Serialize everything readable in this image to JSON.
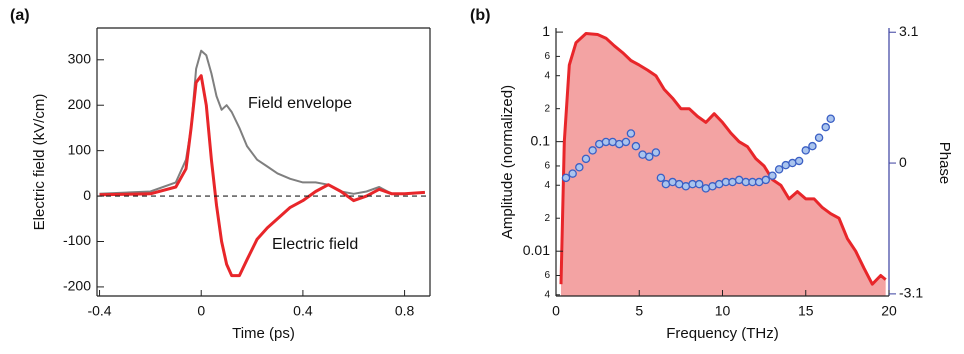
{
  "chart_data": [
    {
      "type": "line",
      "panel_label": "(a)",
      "xlabel": "Time (ps)",
      "ylabel": "Electric field  (kV/cm)",
      "xlim": [
        -0.41,
        0.9
      ],
      "ylim": [
        -220,
        370
      ],
      "xticks": [
        -0.4,
        0,
        0.4,
        0.8
      ],
      "yticks": [
        -200,
        -100,
        0,
        100,
        200,
        300
      ],
      "zero_line": true,
      "x": [
        -0.4,
        -0.2,
        -0.1,
        -0.06,
        -0.04,
        -0.02,
        0,
        0.02,
        0.04,
        0.06,
        0.08,
        0.1,
        0.12,
        0.15,
        0.18,
        0.22,
        0.26,
        0.3,
        0.35,
        0.4,
        0.45,
        0.5,
        0.55,
        0.6,
        0.65,
        0.7,
        0.75,
        0.8,
        0.88
      ],
      "series": [
        {
          "name": "Field envelope",
          "color": "#7f7f7f",
          "values": [
            5,
            10,
            30,
            80,
            150,
            280,
            320,
            310,
            270,
            220,
            190,
            200,
            185,
            150,
            110,
            80,
            65,
            50,
            38,
            30,
            30,
            25,
            10,
            5,
            10,
            20,
            5,
            5,
            8
          ]
        },
        {
          "name": "Electric field",
          "color": "#e8262a",
          "values": [
            3,
            5,
            20,
            60,
            150,
            250,
            265,
            200,
            80,
            -20,
            -100,
            -150,
            -175,
            -175,
            -140,
            -95,
            -70,
            -50,
            -25,
            -10,
            10,
            25,
            10,
            -10,
            0,
            15,
            5,
            5,
            8
          ]
        }
      ]
    },
    {
      "type": "area",
      "panel_label": "(b)",
      "xlabel": "Frequency (THz)",
      "ylabel": "Amplitude (normalized)",
      "y2label": "Phase",
      "xlim": [
        0,
        20
      ],
      "ylim": [
        0.0039,
        1.09
      ],
      "ylog": true,
      "y2lim": [
        -3.15,
        3.2
      ],
      "xticks": [
        0,
        5,
        10,
        15,
        20
      ],
      "yticks": [
        {
          "value": 0.004,
          "label": "4"
        },
        {
          "value": 0.006,
          "label": "6"
        },
        0.01,
        {
          "value": 0.02,
          "label": "2"
        },
        {
          "value": 0.04,
          "label": "4"
        },
        {
          "value": 0.06,
          "label": "6"
        },
        0.1,
        {
          "value": 0.2,
          "label": "2"
        },
        {
          "value": 0.4,
          "label": "4"
        },
        {
          "value": 0.6,
          "label": "6"
        },
        1
      ],
      "y2ticks": [
        -3.1,
        0,
        3.1
      ],
      "y2color": "#3a3fa0",
      "series": [
        {
          "color": "#e8262a",
          "fill": "#f3a3a3",
          "x": [
            0.3,
            0.5,
            0.8,
            1.2,
            1.8,
            2.5,
            3,
            3.5,
            4,
            4.5,
            5,
            5.5,
            6,
            6.5,
            7,
            7.5,
            8,
            8.5,
            9,
            9.5,
            10,
            10.5,
            11,
            11.5,
            12,
            12.5,
            13,
            13.5,
            14,
            14.5,
            15,
            15.5,
            16,
            16.5,
            17,
            17.5,
            18,
            18.5,
            19,
            19.5,
            19.8
          ],
          "values": [
            0.005,
            0.1,
            0.5,
            0.8,
            0.97,
            0.95,
            0.88,
            0.75,
            0.65,
            0.55,
            0.5,
            0.45,
            0.4,
            0.3,
            0.25,
            0.2,
            0.2,
            0.17,
            0.15,
            0.18,
            0.15,
            0.12,
            0.1,
            0.09,
            0.07,
            0.06,
            0.045,
            0.04,
            0.03,
            0.035,
            0.03,
            0.03,
            0.025,
            0.022,
            0.02,
            0.013,
            0.01,
            0.007,
            0.005,
            0.006,
            0.0055
          ]
        },
        {
          "color": "#3b5fc4",
          "fill": "#a9c4ee",
          "marker": "circle",
          "axis": "y2",
          "x": [
            0.6,
            1.0,
            1.4,
            1.8,
            2.2,
            2.6,
            3.0,
            3.4,
            3.8,
            4.2,
            4.5,
            4.8,
            5.2,
            5.6,
            6.0,
            6.3,
            6.6,
            7.0,
            7.4,
            7.8,
            8.2,
            8.6,
            9.0,
            9.4,
            9.8,
            10.2,
            10.6,
            11.0,
            11.4,
            11.8,
            12.2,
            12.6,
            13.0,
            13.4,
            13.8,
            14.2,
            14.6,
            15.0,
            15.4,
            15.8,
            16.2,
            16.5
          ],
          "values": [
            -0.35,
            -0.25,
            -0.1,
            0.1,
            0.3,
            0.45,
            0.5,
            0.5,
            0.45,
            0.5,
            0.7,
            0.4,
            0.2,
            0.15,
            0.25,
            -0.35,
            -0.5,
            -0.45,
            -0.5,
            -0.55,
            -0.5,
            -0.5,
            -0.6,
            -0.55,
            -0.5,
            -0.45,
            -0.45,
            -0.4,
            -0.45,
            -0.45,
            -0.45,
            -0.4,
            -0.3,
            -0.15,
            -0.05,
            0.0,
            0.05,
            0.3,
            0.4,
            0.6,
            0.85,
            1.05
          ]
        }
      ]
    }
  ]
}
